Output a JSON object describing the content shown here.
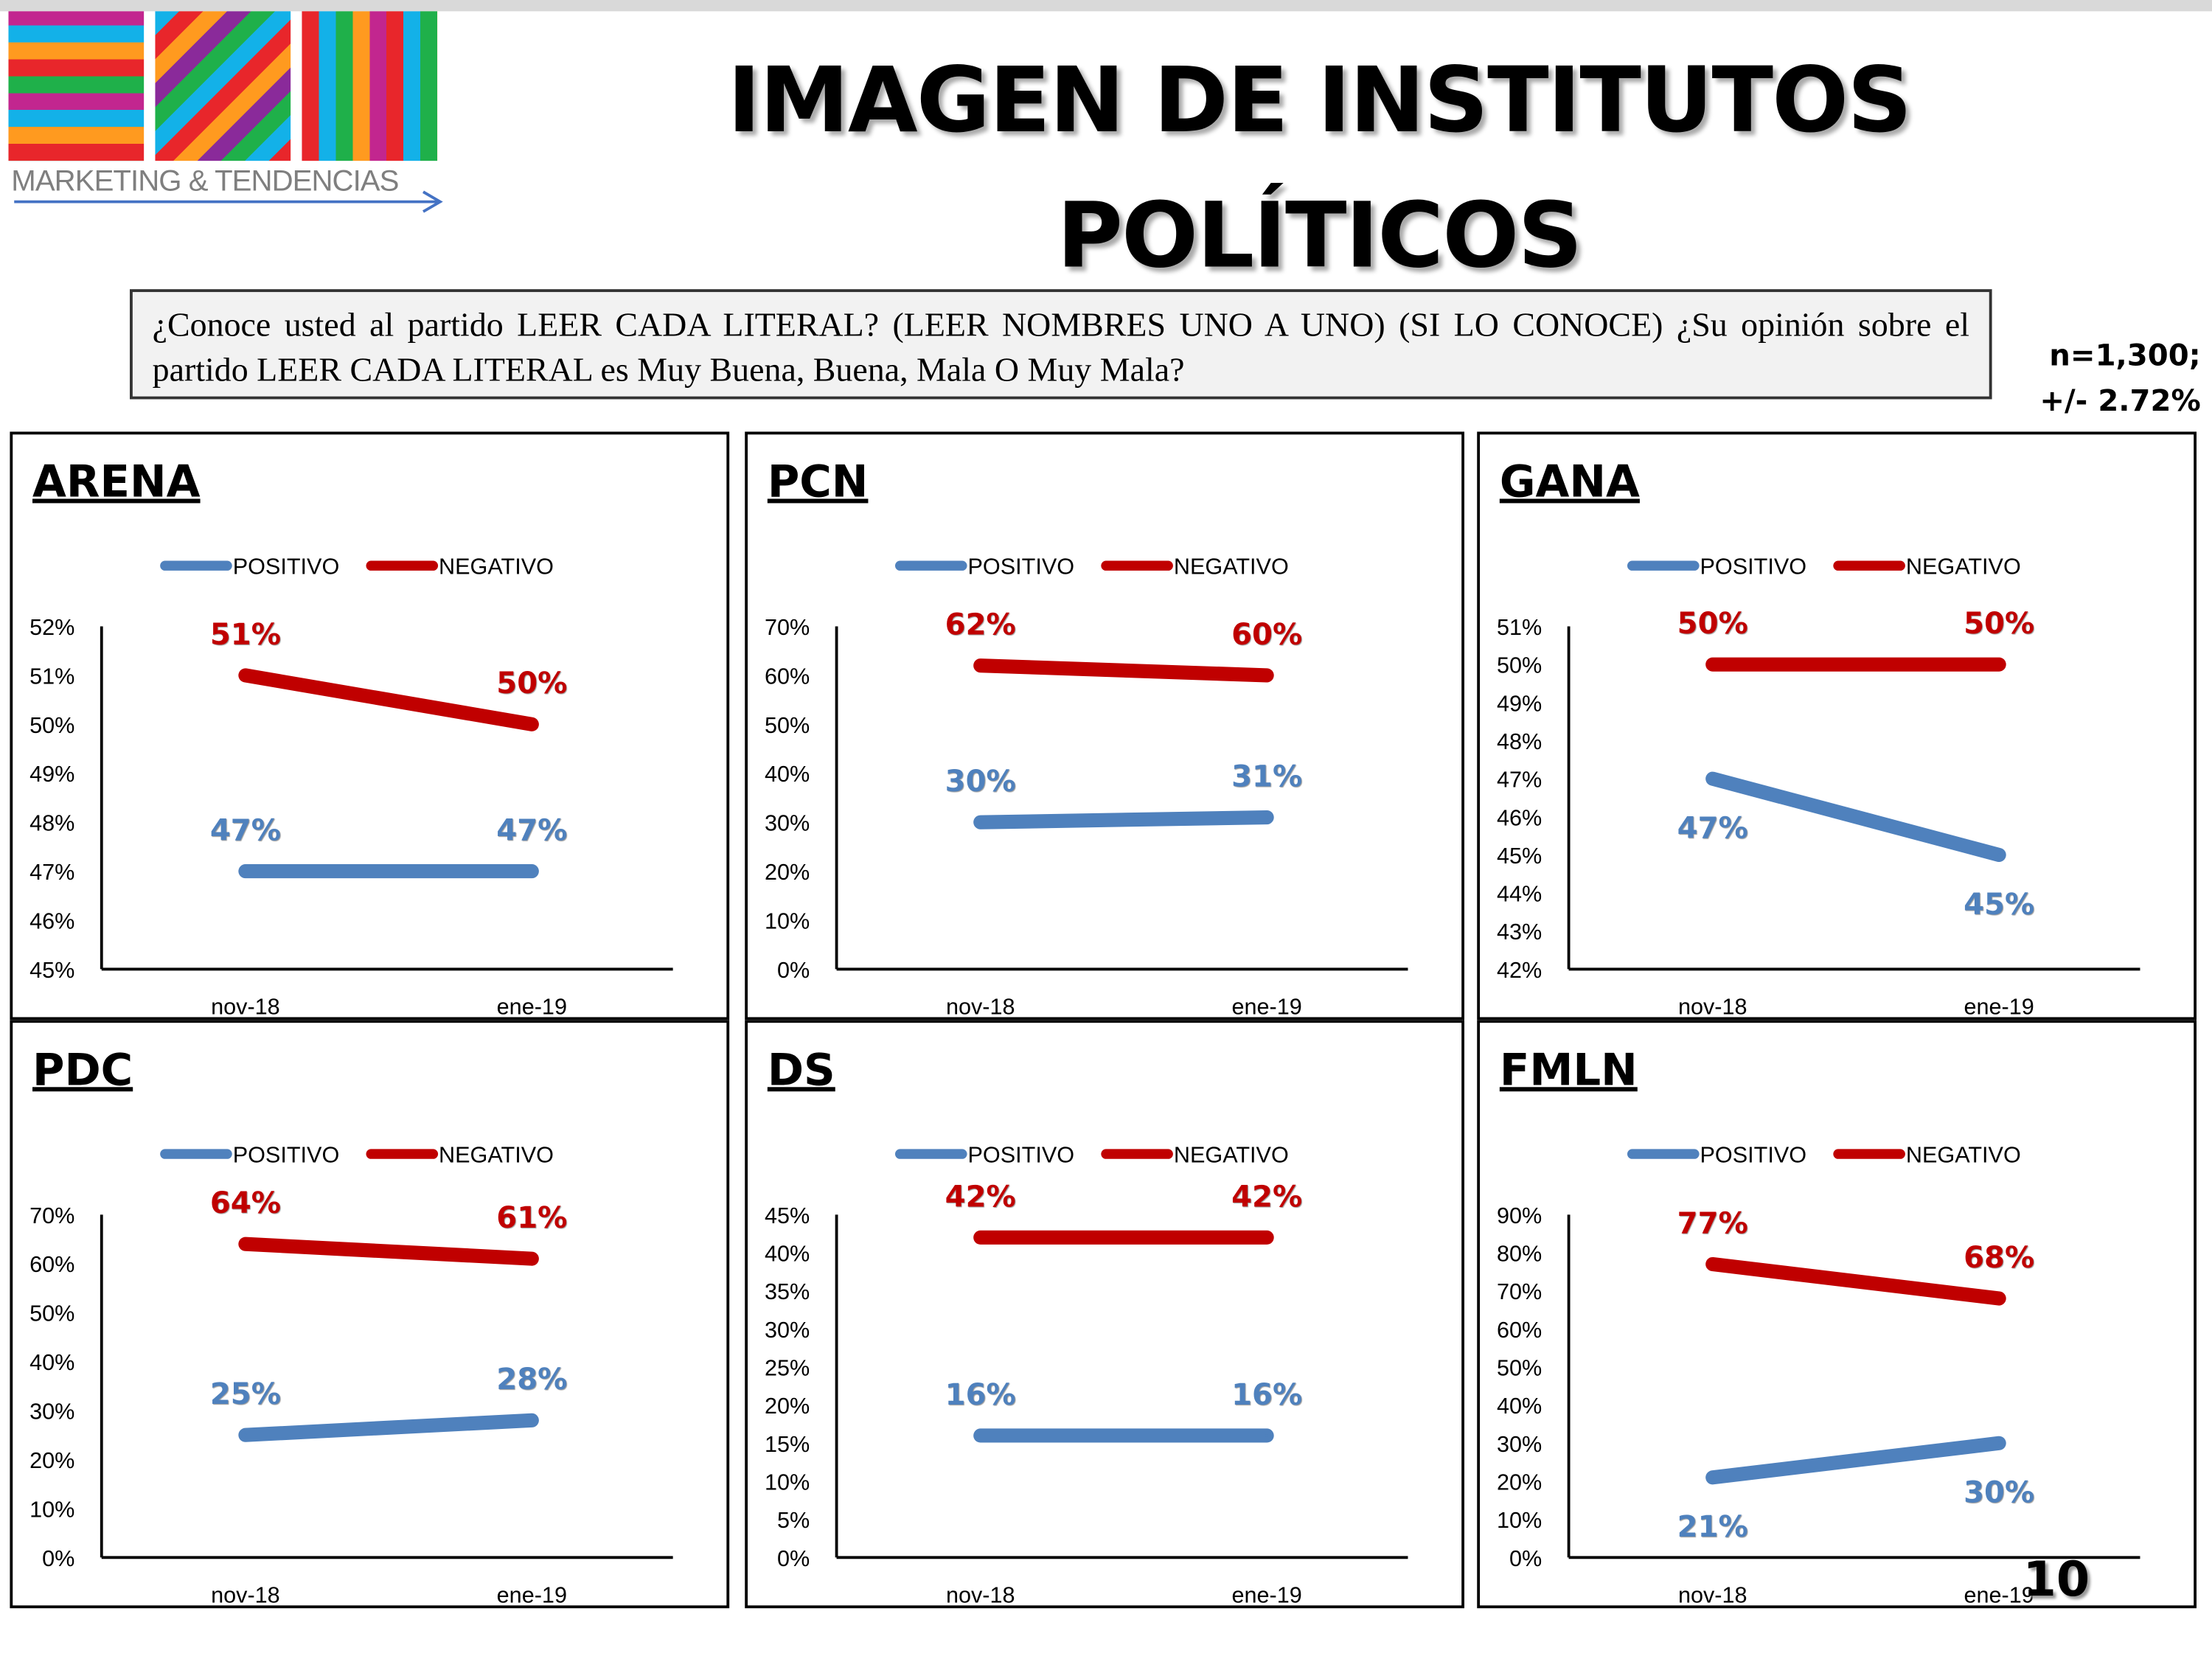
{
  "header": {
    "logo_text": "MARKETING & TENDENCIAS",
    "title_line1": "IMAGEN DE INSTITUTOS",
    "title_line2": "POLÍTICOS"
  },
  "question": "¿Conoce usted al partido LEER CADA LITERAL? (LEER NOMBRES UNO A UNO) (SI LO CONOCE) ¿Su opinión sobre el partido LEER CADA LITERAL es Muy Buena, Buena, Mala O Muy Mala?",
  "sample": {
    "n": "n=1,300;",
    "margin": "+/- 2.72%"
  },
  "page_number": "10",
  "colors": {
    "positivo": "#4f81bd",
    "negativo": "#c00000"
  },
  "chart_data": [
    {
      "type": "line",
      "title": "ARENA",
      "categories": [
        "nov-18",
        "ene-19"
      ],
      "ylim": [
        45,
        52
      ],
      "ystep": 1,
      "yticks": [
        "45%",
        "46%",
        "47%",
        "48%",
        "49%",
        "50%",
        "51%",
        "52%"
      ],
      "series": [
        {
          "name": "POSITIVO",
          "values": [
            47,
            47
          ],
          "labels": [
            "47%",
            "47%"
          ]
        },
        {
          "name": "NEGATIVO",
          "values": [
            51,
            50
          ],
          "labels": [
            "51%",
            "50%"
          ]
        }
      ]
    },
    {
      "type": "line",
      "title": "PCN",
      "categories": [
        "nov-18",
        "ene-19"
      ],
      "ylim": [
        0,
        70
      ],
      "ystep": 10,
      "yticks": [
        "0%",
        "10%",
        "20%",
        "30%",
        "40%",
        "50%",
        "60%",
        "70%"
      ],
      "series": [
        {
          "name": "POSITIVO",
          "values": [
            30,
            31
          ],
          "labels": [
            "30%",
            "31%"
          ]
        },
        {
          "name": "NEGATIVO",
          "values": [
            62,
            60
          ],
          "labels": [
            "62%",
            "60%"
          ]
        }
      ]
    },
    {
      "type": "line",
      "title": "GANA",
      "categories": [
        "nov-18",
        "ene-19"
      ],
      "ylim": [
        42,
        51
      ],
      "ystep": 1,
      "yticks": [
        "42%",
        "43%",
        "44%",
        "45%",
        "46%",
        "47%",
        "48%",
        "49%",
        "50%",
        "51%"
      ],
      "series": [
        {
          "name": "POSITIVO",
          "values": [
            47,
            45
          ],
          "labels": [
            "47%",
            "45%"
          ]
        },
        {
          "name": "NEGATIVO",
          "values": [
            50,
            50
          ],
          "labels": [
            "50%",
            "50%"
          ]
        }
      ]
    },
    {
      "type": "line",
      "title": "PDC",
      "categories": [
        "nov-18",
        "ene-19"
      ],
      "ylim": [
        0,
        70
      ],
      "ystep": 10,
      "yticks": [
        "0%",
        "10%",
        "20%",
        "30%",
        "40%",
        "50%",
        "60%",
        "70%"
      ],
      "series": [
        {
          "name": "POSITIVO",
          "values": [
            25,
            28
          ],
          "labels": [
            "25%",
            "28%"
          ]
        },
        {
          "name": "NEGATIVO",
          "values": [
            64,
            61
          ],
          "labels": [
            "64%",
            "61%"
          ]
        }
      ]
    },
    {
      "type": "line",
      "title": "DS",
      "categories": [
        "nov-18",
        "ene-19"
      ],
      "ylim": [
        0,
        45
      ],
      "ystep": 5,
      "yticks": [
        "0%",
        "5%",
        "10%",
        "15%",
        "20%",
        "25%",
        "30%",
        "35%",
        "40%",
        "45%"
      ],
      "series": [
        {
          "name": "POSITIVO",
          "values": [
            16,
            16
          ],
          "labels": [
            "16%",
            "16%"
          ]
        },
        {
          "name": "NEGATIVO",
          "values": [
            42,
            42
          ],
          "labels": [
            "42%",
            "42%"
          ]
        }
      ]
    },
    {
      "type": "line",
      "title": "FMLN",
      "categories": [
        "nov-18",
        "ene-19"
      ],
      "ylim": [
        0,
        90
      ],
      "ystep": 10,
      "yticks": [
        "0%",
        "10%",
        "20%",
        "30%",
        "40%",
        "50%",
        "60%",
        "70%",
        "80%",
        "90%"
      ],
      "series": [
        {
          "name": "POSITIVO",
          "values": [
            21,
            30
          ],
          "labels": [
            "21%",
            "30%"
          ]
        },
        {
          "name": "NEGATIVO",
          "values": [
            77,
            68
          ],
          "labels": [
            "77%",
            "68%"
          ]
        }
      ]
    }
  ]
}
